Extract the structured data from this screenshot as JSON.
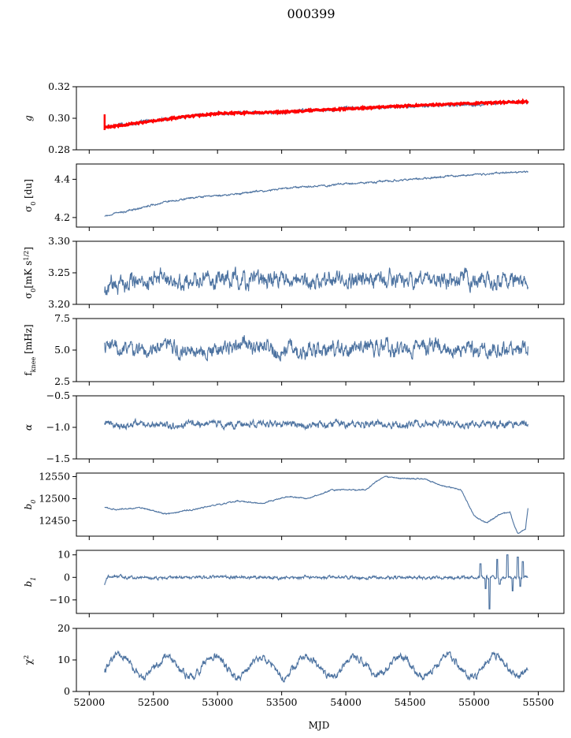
{
  "figure": {
    "title": "000399"
  },
  "chart_data": {
    "type": "line",
    "x_label": "MJD",
    "x_range": [
      51900,
      55700
    ],
    "x_ticks": [
      52000,
      52500,
      53000,
      53500,
      54000,
      54500,
      55000,
      55500
    ],
    "x_tick_labels": [
      "52000",
      "52500",
      "53000",
      "53500",
      "54000",
      "54500",
      "55000",
      "55500"
    ],
    "x_data_start": 52120,
    "x_data_end": 55420,
    "colors": {
      "series": "#4c72a0",
      "overlay": "#ff0000"
    },
    "panels": [
      {
        "key": "g",
        "ylabel": "g",
        "ylim": [
          0.28,
          0.32
        ],
        "y_ticks": [
          0.28,
          0.3,
          0.32
        ],
        "y_tick_labels": [
          "0.28",
          "0.30",
          "0.32"
        ],
        "trend": [
          [
            52120,
            0.2945
          ],
          [
            52200,
            0.2955
          ],
          [
            52700,
            0.3005
          ],
          [
            53000,
            0.303
          ],
          [
            53500,
            0.304
          ],
          [
            54000,
            0.306
          ],
          [
            54500,
            0.3075
          ],
          [
            55000,
            0.309
          ],
          [
            55420,
            0.3105
          ]
        ],
        "noise": 0.0008,
        "overlay": {
          "name": "",
          "trend": [
            [
              52120,
              0.294
            ],
            [
              52200,
              0.295
            ],
            [
              52700,
              0.3005
            ],
            [
              53000,
              0.303
            ],
            [
              53500,
              0.304
            ],
            [
              54000,
              0.306
            ],
            [
              54500,
              0.308
            ],
            [
              55000,
              0.3095
            ],
            [
              55400,
              0.3105
            ],
            [
              55420,
              0.3105
            ]
          ],
          "thickness": 0.0012
        }
      },
      {
        "key": "sigma0_du",
        "ylabel": "σ0 [du]",
        "ylim": [
          4.15,
          4.48
        ],
        "y_ticks": [
          4.2,
          4.4
        ],
        "y_tick_labels": [
          "4.2",
          "4.4"
        ],
        "trend": [
          [
            52120,
            4.205
          ],
          [
            52300,
            4.235
          ],
          [
            52600,
            4.285
          ],
          [
            53000,
            4.315
          ],
          [
            53500,
            4.35
          ],
          [
            54000,
            4.375
          ],
          [
            54500,
            4.4
          ],
          [
            55000,
            4.425
          ],
          [
            55420,
            4.44
          ]
        ],
        "noise": 0.004
      },
      {
        "key": "sigma0_mks",
        "ylabel": "σ0 [mK s^1/2]",
        "ylim": [
          3.2,
          3.3
        ],
        "y_ticks": [
          3.2,
          3.25,
          3.3
        ],
        "y_tick_labels": [
          "3.20",
          "3.25",
          "3.30"
        ],
        "trend": [
          [
            52120,
            3.213
          ],
          [
            52180,
            3.23
          ],
          [
            52300,
            3.238
          ],
          [
            55420,
            3.238
          ]
        ],
        "noise": 0.012
      },
      {
        "key": "fknee",
        "ylabel": "f_knee [mHz]",
        "ylim": [
          2.5,
          7.5
        ],
        "y_ticks": [
          2.5,
          5.0,
          7.5
        ],
        "y_tick_labels": [
          "2.5",
          "5.0",
          "7.5"
        ],
        "trend": [
          [
            52120,
            5.2
          ],
          [
            55420,
            5.0
          ]
        ],
        "noise": 0.55
      },
      {
        "key": "alpha",
        "ylabel": "α",
        "ylim": [
          -1.5,
          -0.5
        ],
        "y_ticks": [
          -1.5,
          -1.0,
          -0.5
        ],
        "y_tick_labels": [
          "−1.5",
          "−1.0",
          "−0.5"
        ],
        "trend": [
          [
            52120,
            -0.95
          ],
          [
            55420,
            -0.95
          ]
        ],
        "noise": 0.05
      },
      {
        "key": "b0",
        "ylabel": "b0",
        "ylim": [
          12415,
          12558
        ],
        "y_ticks": [
          12450,
          12500,
          12550
        ],
        "y_tick_labels": [
          "12450",
          "12500",
          "12550"
        ],
        "trend": [
          [
            52120,
            12480
          ],
          [
            52200,
            12475
          ],
          [
            52400,
            12480
          ],
          [
            52600,
            12465
          ],
          [
            52900,
            12480
          ],
          [
            53150,
            12495
          ],
          [
            53350,
            12490
          ],
          [
            53550,
            12505
          ],
          [
            53700,
            12500
          ],
          [
            53900,
            12520
          ],
          [
            54150,
            12520
          ],
          [
            54300,
            12550
          ],
          [
            54450,
            12545
          ],
          [
            54600,
            12545
          ],
          [
            54750,
            12530
          ],
          [
            54900,
            12520
          ],
          [
            55000,
            12460
          ],
          [
            55100,
            12445
          ],
          [
            55200,
            12465
          ],
          [
            55280,
            12470
          ],
          [
            55300,
            12450
          ],
          [
            55340,
            12420
          ],
          [
            55400,
            12430
          ],
          [
            55420,
            12480
          ],
          [
            55450,
            12505
          ],
          [
            55500,
            12505
          ]
        ],
        "noise": 1.2
      },
      {
        "key": "b1",
        "ylabel": "b1",
        "ylim": [
          -16,
          12
        ],
        "y_ticks": [
          -10,
          0,
          10
        ],
        "y_tick_labels": [
          "−10",
          "0",
          "10"
        ],
        "trend": [
          [
            52120,
            -3
          ],
          [
            52140,
            0
          ],
          [
            55420,
            0
          ]
        ],
        "noise": 0.6,
        "spikes": [
          [
            55050,
            6
          ],
          [
            55090,
            -5
          ],
          [
            55120,
            -14
          ],
          [
            55180,
            8
          ],
          [
            55200,
            -3
          ],
          [
            55260,
            10
          ],
          [
            55300,
            -6
          ],
          [
            55340,
            9
          ],
          [
            55360,
            -4
          ],
          [
            55380,
            7
          ]
        ]
      },
      {
        "key": "chi2",
        "ylabel": "χ²",
        "ylim": [
          0,
          20
        ],
        "y_ticks": [
          0,
          10,
          20
        ],
        "y_tick_labels": [
          "0",
          "10",
          "20"
        ],
        "trend": [
          [
            52120,
            8
          ],
          [
            55420,
            8
          ]
        ],
        "noise": 1.0,
        "seasonal": {
          "amplitude": 3.2,
          "period_days": 365
        }
      }
    ]
  }
}
